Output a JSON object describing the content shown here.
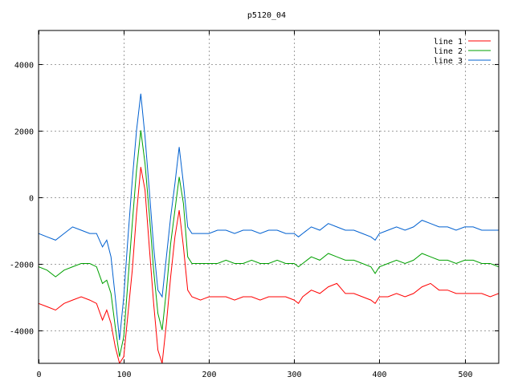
{
  "chart_data": {
    "type": "line",
    "title": "p5120_04",
    "xlabel": "",
    "ylabel": "",
    "xlim": [
      0,
      540
    ],
    "ylim": [
      -5000,
      5000
    ],
    "x_ticks": [
      0,
      100,
      200,
      300,
      400,
      500
    ],
    "y_ticks": [
      -4000,
      -2000,
      0,
      2000,
      4000
    ],
    "grid": true,
    "legend": "top-right",
    "series": [
      {
        "name": "line 1",
        "color": "#ff0000",
        "x": [
          0,
          10,
          20,
          30,
          40,
          50,
          60,
          68,
          75,
          80,
          85,
          90,
          95,
          100,
          105,
          110,
          115,
          120,
          125,
          130,
          135,
          140,
          145,
          150,
          155,
          160,
          165,
          170,
          175,
          180,
          190,
          200,
          210,
          220,
          230,
          240,
          250,
          260,
          270,
          280,
          290,
          300,
          305,
          310,
          320,
          330,
          340,
          350,
          360,
          370,
          380,
          390,
          395,
          400,
          410,
          420,
          430,
          440,
          450,
          460,
          470,
          480,
          490,
          500,
          510,
          520,
          530,
          540
        ],
        "y": [
          -3200,
          -3300,
          -3400,
          -3200,
          -3100,
          -3000,
          -3100,
          -3200,
          -3700,
          -3400,
          -3800,
          -4500,
          -5000,
          -4800,
          -3500,
          -2200,
          -500,
          900,
          200,
          -1500,
          -3200,
          -4600,
          -5000,
          -3800,
          -2400,
          -1200,
          -400,
          -1500,
          -2800,
          -3000,
          -3100,
          -3000,
          -3000,
          -3000,
          -3100,
          -3000,
          -3000,
          -3100,
          -3000,
          -3000,
          -3000,
          -3100,
          -3200,
          -3000,
          -2800,
          -2900,
          -2700,
          -2600,
          -2900,
          -2900,
          -3000,
          -3100,
          -3200,
          -3000,
          -3000,
          -2900,
          -3000,
          -2900,
          -2700,
          -2600,
          -2800,
          -2800,
          -2900,
          -2900,
          -2900,
          -2900,
          -3000,
          -2900
        ]
      },
      {
        "name": "line 2",
        "color": "#00a000",
        "x": [
          0,
          10,
          20,
          30,
          40,
          50,
          60,
          68,
          75,
          80,
          85,
          90,
          95,
          100,
          105,
          110,
          115,
          120,
          125,
          130,
          135,
          140,
          145,
          150,
          155,
          160,
          165,
          170,
          175,
          180,
          190,
          200,
          210,
          220,
          230,
          240,
          250,
          260,
          270,
          280,
          290,
          300,
          305,
          310,
          320,
          330,
          340,
          350,
          360,
          370,
          380,
          390,
          395,
          400,
          410,
          420,
          430,
          440,
          450,
          460,
          470,
          480,
          490,
          500,
          510,
          520,
          530,
          540
        ],
        "y": [
          -2100,
          -2200,
          -2400,
          -2200,
          -2100,
          -2000,
          -2000,
          -2100,
          -2600,
          -2500,
          -2900,
          -3900,
          -4800,
          -4200,
          -2500,
          -800,
          800,
          2000,
          1000,
          -500,
          -2200,
          -3500,
          -4000,
          -2800,
          -1400,
          -400,
          600,
          -200,
          -1800,
          -2000,
          -2000,
          -2000,
          -2000,
          -1900,
          -2000,
          -2000,
          -1900,
          -2000,
          -2000,
          -1900,
          -2000,
          -2000,
          -2100,
          -2000,
          -1800,
          -1900,
          -1700,
          -1800,
          -1900,
          -1900,
          -2000,
          -2100,
          -2300,
          -2100,
          -2000,
          -1900,
          -2000,
          -1900,
          -1700,
          -1800,
          -1900,
          -1900,
          -2000,
          -1900,
          -1900,
          -2000,
          -2000,
          -2100
        ]
      },
      {
        "name": "line 3",
        "color": "#0060d0",
        "x": [
          0,
          10,
          20,
          30,
          40,
          50,
          60,
          68,
          75,
          80,
          85,
          90,
          95,
          100,
          105,
          110,
          115,
          120,
          125,
          130,
          135,
          140,
          145,
          150,
          155,
          160,
          165,
          170,
          175,
          180,
          190,
          200,
          210,
          220,
          230,
          240,
          250,
          260,
          270,
          280,
          290,
          300,
          305,
          310,
          320,
          330,
          340,
          350,
          360,
          370,
          380,
          390,
          395,
          400,
          410,
          420,
          430,
          440,
          450,
          460,
          470,
          480,
          490,
          500,
          510,
          520,
          530,
          540
        ],
        "y": [
          -1100,
          -1200,
          -1300,
          -1100,
          -900,
          -1000,
          -1100,
          -1100,
          -1500,
          -1300,
          -1800,
          -3000,
          -4300,
          -3000,
          -1200,
          500,
          2000,
          3100,
          1800,
          200,
          -1500,
          -2800,
          -3000,
          -1800,
          -600,
          400,
          1500,
          400,
          -900,
          -1100,
          -1100,
          -1100,
          -1000,
          -1000,
          -1100,
          -1000,
          -1000,
          -1100,
          -1000,
          -1000,
          -1100,
          -1100,
          -1200,
          -1100,
          -900,
          -1000,
          -800,
          -900,
          -1000,
          -1000,
          -1100,
          -1200,
          -1300,
          -1100,
          -1000,
          -900,
          -1000,
          -900,
          -700,
          -800,
          -900,
          -900,
          -1000,
          -900,
          -900,
          -1000,
          -1000,
          -1000
        ]
      }
    ]
  }
}
